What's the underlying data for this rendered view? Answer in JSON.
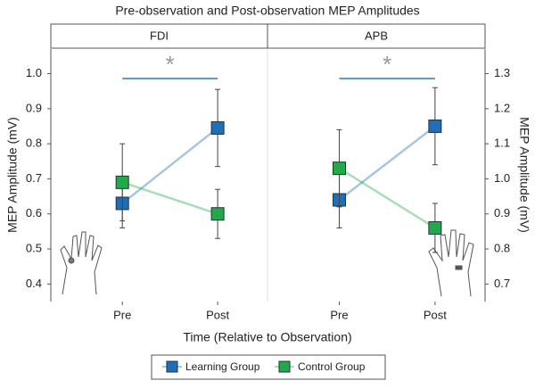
{
  "chart_data": [
    {
      "type": "line",
      "title": "Pre-observation and Post-observation MEP Amplitudes",
      "subtitle": "FDI",
      "xlabel": "Time (Relative to Observation)",
      "ylabel": "MEP Amplitude (mV)",
      "annotation": "*",
      "categories": [
        "Pre",
        "Post"
      ],
      "ylim": [
        0.35,
        1.07
      ],
      "yticks": [
        0.4,
        0.5,
        0.6,
        0.7,
        0.8,
        0.9,
        {
          "value": 1,
          "label": "1.0"
        }
      ],
      "series": [
        {
          "name": "Learning Group",
          "color": "#1f6fb8",
          "values": [
            0.63,
            0.845
          ],
          "errors": [
            0.07,
            0.11
          ]
        },
        {
          "name": "Control Group",
          "color": "#22a94a",
          "values": [
            0.69,
            0.6
          ],
          "errors": [
            0.11,
            0.07
          ]
        }
      ]
    },
    {
      "type": "line",
      "subtitle": "APB",
      "ylabel": "MEP Amplitude (mV)",
      "annotation": "*",
      "categories": [
        "Pre",
        "Post"
      ],
      "y2lim": [
        0.65,
        1.37
      ],
      "y2ticks": [
        0.7,
        0.8,
        0.9,
        {
          "value": 1,
          "label": "1.0"
        },
        1.1,
        1.2,
        1.3
      ],
      "series": [
        {
          "axis": "y2",
          "color": "#1f6fb8",
          "values": [
            0.94,
            1.15
          ],
          "errors": [
            0.08,
            0.11
          ]
        },
        {
          "axis": "y2",
          "color": "#22a94a",
          "values": [
            1.03,
            0.86
          ],
          "errors": [
            0.11,
            0.07
          ]
        }
      ]
    }
  ]
}
